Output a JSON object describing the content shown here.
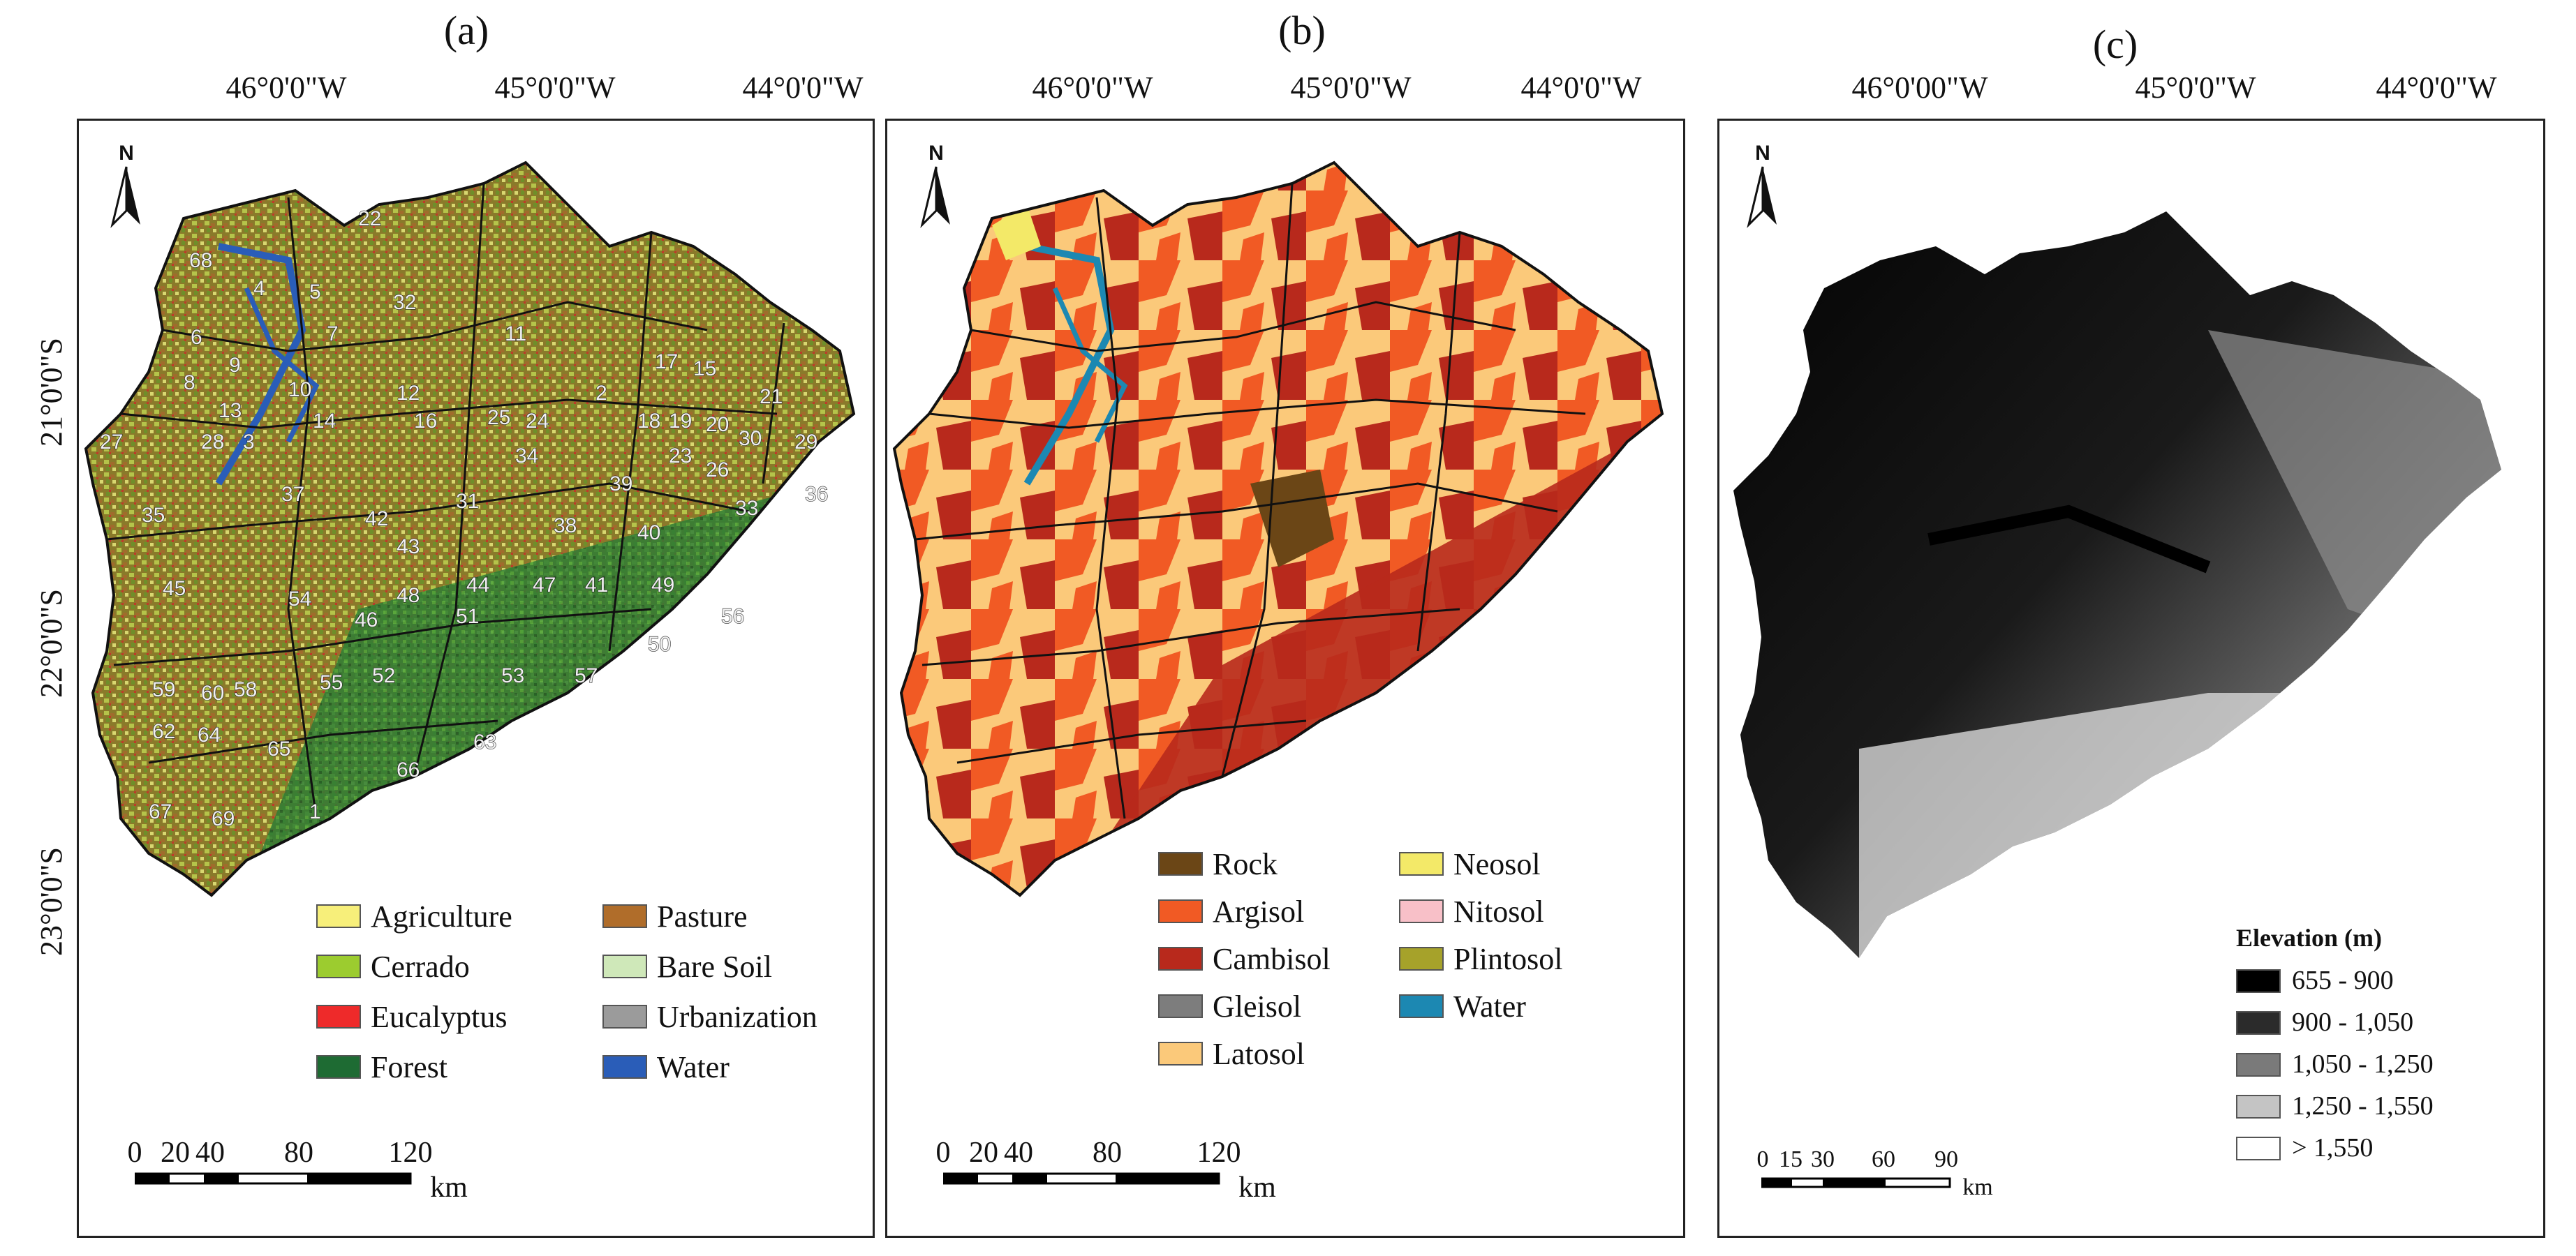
{
  "panels": [
    {
      "letter": "(a)",
      "lon_labels": [
        "46°0'0\"W",
        "45°0'0\"W",
        "44°0'0\"W"
      ],
      "lat_labels": [
        "21°0'0\"S",
        "22°0'0\"S",
        "23°0'0\"S"
      ],
      "north": "N",
      "basin_numbers": [
        "22",
        "68",
        "4",
        "5",
        "32",
        "6",
        "7",
        "11",
        "9",
        "17",
        "15",
        "21",
        "8",
        "10",
        "12",
        "2",
        "13",
        "14",
        "16",
        "25",
        "24",
        "18",
        "19",
        "20",
        "30",
        "29",
        "27",
        "28",
        "3",
        "34",
        "23",
        "26",
        "36",
        "37",
        "39",
        "35",
        "31",
        "33",
        "42",
        "38",
        "40",
        "43",
        "45",
        "54",
        "48",
        "44",
        "47",
        "41",
        "49",
        "46",
        "51",
        "56",
        "50",
        "55",
        "52",
        "53",
        "57",
        "59",
        "60",
        "58",
        "62",
        "64",
        "65",
        "63",
        "66",
        "67",
        "69",
        "1"
      ],
      "legend": [
        {
          "label": "Agriculture",
          "color": "#f7ef7a"
        },
        {
          "label": "Pasture",
          "color": "#b06d2a"
        },
        {
          "label": "Cerrado",
          "color": "#9ccc2f"
        },
        {
          "label": "Bare Soil",
          "color": "#cfe8b9"
        },
        {
          "label": "Eucalyptus",
          "color": "#ee2a2a"
        },
        {
          "label": "Urbanization",
          "color": "#9b9b9b"
        },
        {
          "label": "Forest",
          "color": "#1e6b33"
        },
        {
          "label": "Water",
          "color": "#2a5db8"
        }
      ],
      "scale_ticks": [
        "0",
        "20",
        "40",
        "80",
        "120"
      ],
      "scale_unit": "km"
    },
    {
      "letter": "(b)",
      "lon_labels": [
        "46°0'0\"W",
        "45°0'0\"W",
        "44°0'0\"W"
      ],
      "north": "N",
      "legend": [
        {
          "label": "Rock",
          "color": "#6b4616"
        },
        {
          "label": "Neosol",
          "color": "#f3e968"
        },
        {
          "label": "Argisol",
          "color": "#f15a24"
        },
        {
          "label": "Nitosol",
          "color": "#f8c0c8"
        },
        {
          "label": "Cambisol",
          "color": "#b8291c"
        },
        {
          "label": "Plintosol",
          "color": "#a6a22a"
        },
        {
          "label": "Gleisol",
          "color": "#7d7d7d"
        },
        {
          "label": "Water",
          "color": "#1c88b2"
        },
        {
          "label": "Latosol",
          "color": "#fbc97a"
        }
      ],
      "scale_ticks": [
        "0",
        "20",
        "40",
        "80",
        "120"
      ],
      "scale_unit": "km"
    },
    {
      "letter": "(c)",
      "lon_labels": [
        "46°0'00\"W",
        "45°0'0\"W",
        "44°0'0\"W"
      ],
      "north": "N",
      "legend_title": "Elevation (m)",
      "legend": [
        {
          "label": "655 - 900",
          "color": "#000000"
        },
        {
          "label": "900 - 1,050",
          "color": "#2b2b2b"
        },
        {
          "label": "1,050 - 1,250",
          "color": "#7a7a7a"
        },
        {
          "label": "1,250 - 1,550",
          "color": "#c4c4c4"
        },
        {
          "label": "> 1,550",
          "color": "#ffffff"
        }
      ],
      "scale_ticks": [
        "0",
        "15",
        "30",
        "60",
        "90"
      ],
      "scale_unit": "km"
    }
  ]
}
